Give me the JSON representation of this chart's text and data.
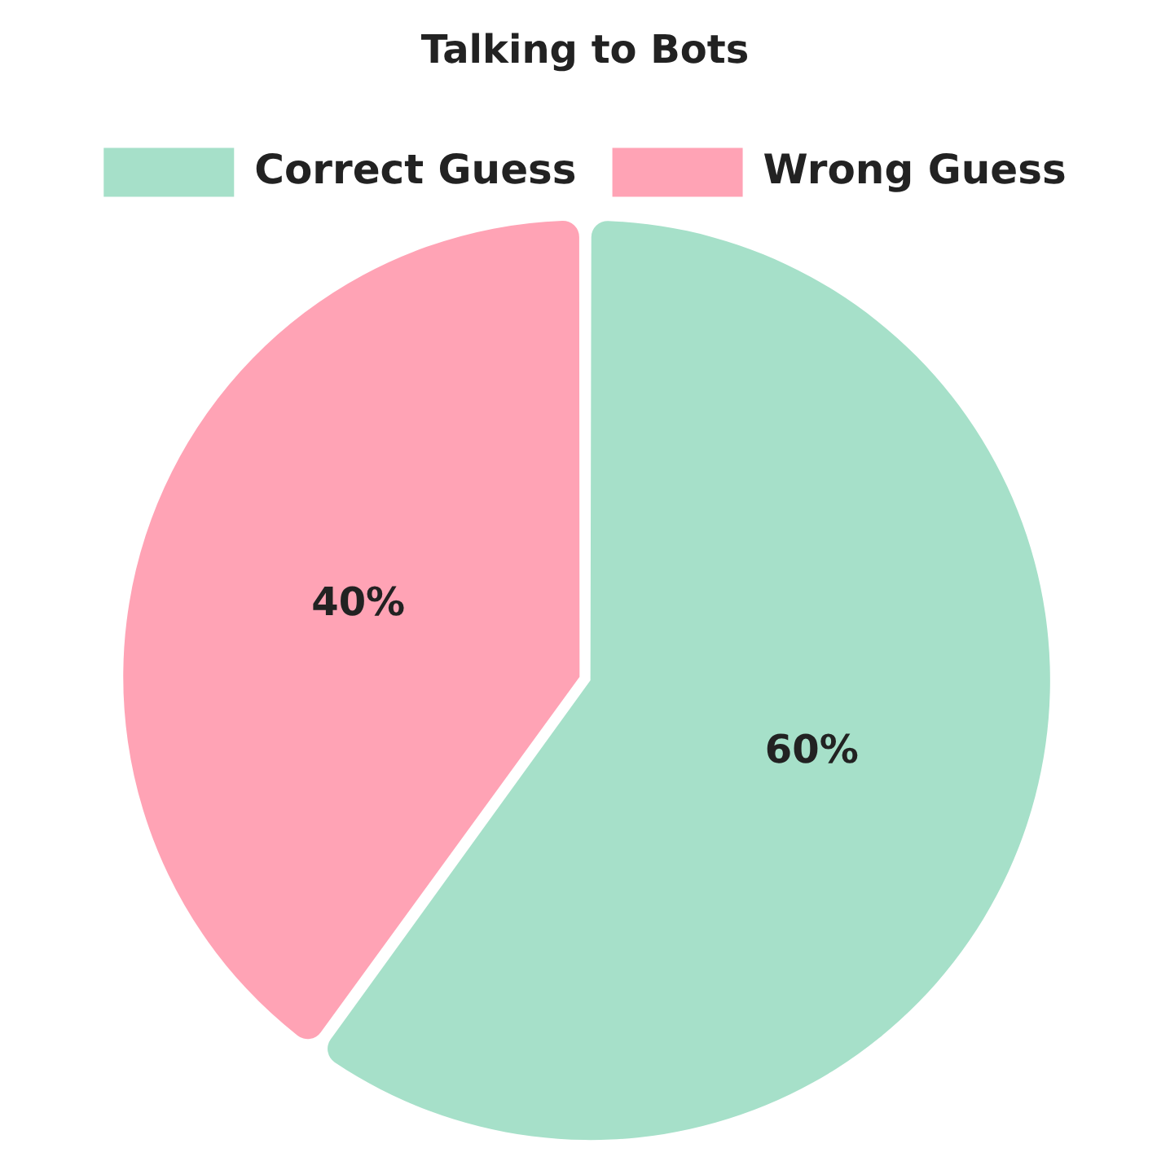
{
  "chart_data": {
    "type": "pie",
    "title": "Talking to Bots",
    "categories": [
      "Correct Guess",
      "Wrong Guess"
    ],
    "values": [
      60,
      40
    ],
    "colors": [
      "#a6e0c9",
      "#ffa3b5"
    ],
    "value_labels": [
      "60%",
      "40%"
    ],
    "legend": "top"
  }
}
